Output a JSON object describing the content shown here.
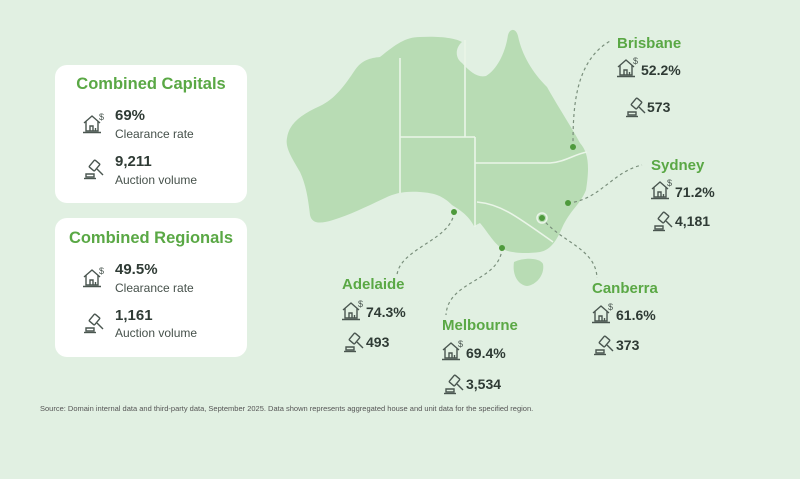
{
  "colors": {
    "background": "#e1f0e2",
    "map_fill": "#b8dcb4",
    "accent_green": "#5aa845",
    "dot": "#4e9a3c",
    "text_dark": "#2f3b35"
  },
  "icons": {
    "clearance": "house-dollar-icon",
    "volume": "gavel-icon"
  },
  "summary": [
    {
      "title": "Combined Capitals",
      "clearance_rate": "69%",
      "clearance_label": "Clearance rate",
      "auction_volume": "9,211",
      "volume_label": "Auction volume"
    },
    {
      "title": "Combined Regionals",
      "clearance_rate": "49.5%",
      "clearance_label": "Clearance rate",
      "auction_volume": "1,161",
      "volume_label": "Auction volume"
    }
  ],
  "cities": [
    {
      "name": "Brisbane",
      "clearance_rate": "52.2%",
      "auction_volume": "573"
    },
    {
      "name": "Sydney",
      "clearance_rate": "71.2%",
      "auction_volume": "4,181"
    },
    {
      "name": "Adelaide",
      "clearance_rate": "74.3%",
      "auction_volume": "493"
    },
    {
      "name": "Melbourne",
      "clearance_rate": "69.4%",
      "auction_volume": "3,534"
    },
    {
      "name": "Canberra",
      "clearance_rate": "61.6%",
      "auction_volume": "373"
    }
  ],
  "source": "Source: Domain internal data and third-party data, September 2025. Data shown represents aggregated house and unit data for the specified region."
}
